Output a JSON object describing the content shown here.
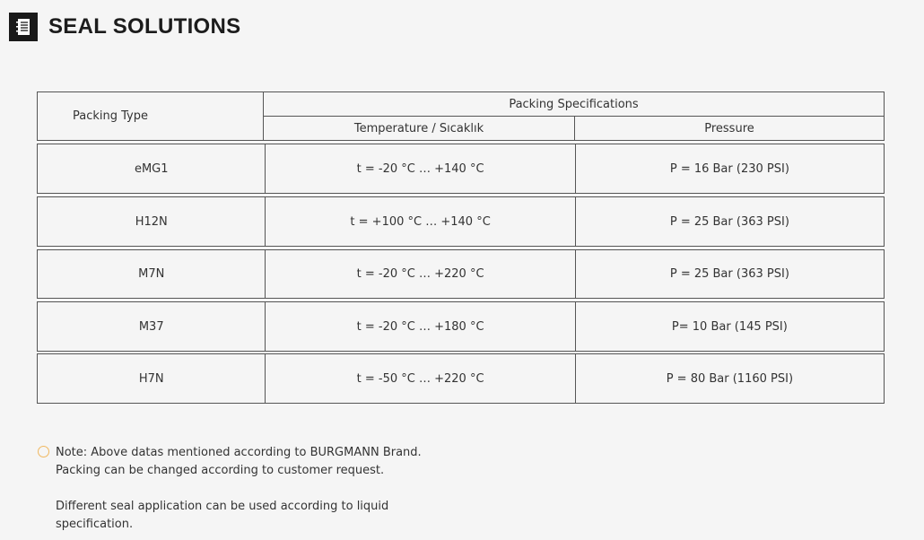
{
  "header": {
    "title": "SEAL SOLUTIONS",
    "icon": "notebook-icon"
  },
  "table": {
    "col_packing_type": "Packing Type",
    "col_specifications": "Packing Specifications",
    "col_temperature": "Temperature / Sıcaklık",
    "col_pressure": "Pressure",
    "rows": [
      {
        "type": "eMG1",
        "temperature": "t = -20 °C … +140 °C",
        "pressure": "P = 16 Bar (230 PSI)"
      },
      {
        "type": "H12N",
        "temperature": "t = +100 °C  … +140 °C",
        "pressure": "P = 25 Bar (363 PSI)"
      },
      {
        "type": "M7N",
        "temperature": "t = -20 °C … +220 °C",
        "pressure": "P = 25 Bar (363 PSI)"
      },
      {
        "type": "M37",
        "temperature": "t = -20 °C … +180 °C",
        "pressure": "P= 10 Bar (145 PSI)"
      },
      {
        "type": "H7N",
        "temperature": "t = -50 °C … +220 °C",
        "pressure": "P = 80 Bar (1160 PSI)"
      }
    ]
  },
  "note": {
    "line1": "Note: Above datas mentioned according to BURGMANN Brand.",
    "line2": "Packing can be changed according to customer request.",
    "line3": "Different seal application can be used according to liquid",
    "line4": "specification.",
    "bullet_color": "#f0b860"
  }
}
